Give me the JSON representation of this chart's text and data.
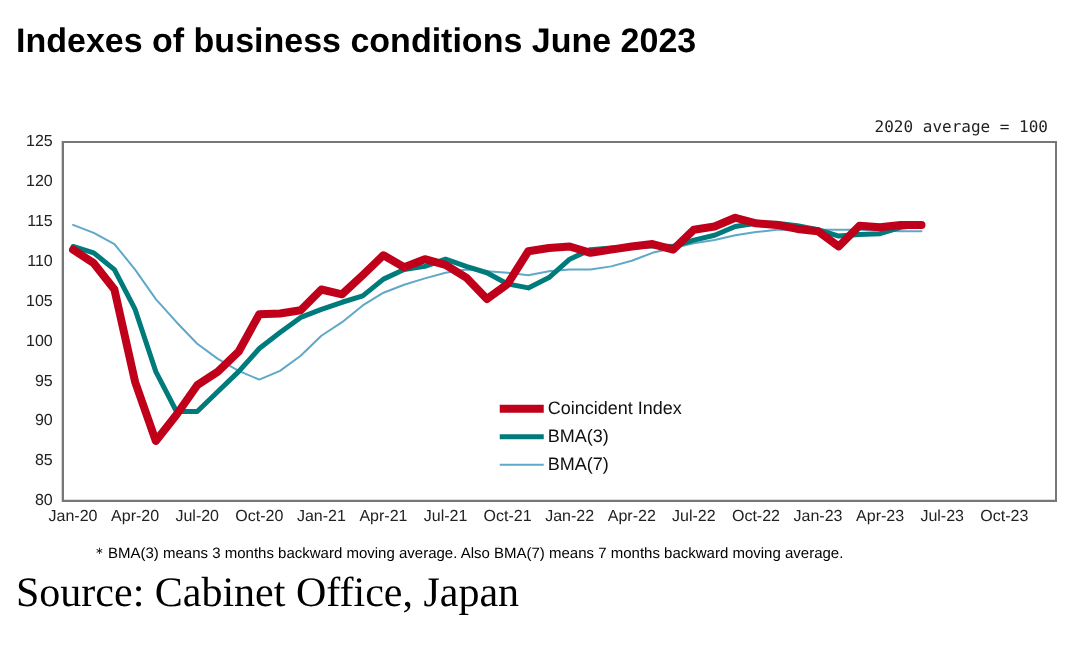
{
  "chart_data": {
    "type": "line",
    "title": "Indexes of business conditions June 2023",
    "categories": [
      "Jan-20",
      null,
      null,
      "Apr-20",
      null,
      null,
      "Jul-20",
      null,
      null,
      "Oct-20",
      null,
      null,
      "Jan-21",
      null,
      null,
      "Apr-21",
      null,
      null,
      "Jul-21",
      null,
      null,
      "Oct-21",
      null,
      null,
      "Jan-22",
      null,
      null,
      "Apr-22",
      null,
      null,
      "Jul-22",
      null,
      null,
      "Oct-22",
      null,
      null,
      "Jan-23",
      null,
      null,
      "Apr-23",
      null,
      null,
      "Jul-23",
      null,
      null,
      "Oct-23",
      null,
      null
    ],
    "series": [
      {
        "name": "Coincident Index",
        "color": "#c0001a",
        "values": [
          111.5,
          109.8,
          106.5,
          94.9,
          87.5,
          90.8,
          94.5,
          96.2,
          98.7,
          103.4,
          103.5,
          103.9,
          106.5,
          105.9,
          108.3,
          110.8,
          109.3,
          110.3,
          109.6,
          108.0,
          105.3,
          107.2,
          111.3,
          111.7,
          111.9,
          111.1,
          111.5,
          111.9,
          112.2,
          111.5,
          114.0,
          114.4,
          115.5,
          114.8,
          114.6,
          114.1,
          113.8,
          111.9,
          114.5,
          114.3,
          114.6,
          114.6,
          null,
          null,
          null,
          null,
          null,
          null
        ]
      },
      {
        "name": "BMA(3)",
        "color": "#007b7b",
        "values": [
          111.9,
          111.1,
          109.0,
          104.0,
          96.2,
          91.2,
          91.2,
          93.7,
          96.2,
          99.1,
          101.1,
          103.0,
          104.0,
          104.9,
          105.7,
          107.8,
          109.0,
          109.4,
          110.3,
          109.4,
          108.6,
          107.2,
          106.7,
          108.0,
          110.3,
          111.5,
          111.7,
          111.8,
          112.0,
          111.9,
          112.7,
          113.3,
          114.4,
          114.8,
          114.8,
          114.5,
          114.0,
          113.2,
          113.4,
          113.5,
          114.3,
          114.6,
          null,
          null,
          null,
          null,
          null,
          null
        ]
      },
      {
        "name": "BMA(7)",
        "color": "#5fa8c8",
        "values": [
          114.6,
          113.6,
          112.2,
          109.0,
          105.3,
          102.4,
          99.7,
          97.8,
          96.3,
          95.2,
          96.3,
          98.2,
          100.7,
          102.4,
          104.5,
          106.1,
          107.1,
          107.9,
          108.6,
          109.0,
          108.8,
          108.6,
          108.3,
          108.8,
          109.0,
          109.0,
          109.4,
          110.1,
          111.1,
          111.7,
          112.3,
          112.7,
          113.3,
          113.7,
          114.0,
          114.0,
          114.0,
          114.0,
          114.0,
          113.9,
          113.8,
          113.8,
          null,
          null,
          null,
          null,
          null,
          null
        ]
      }
    ],
    "ylim": [
      80,
      125
    ],
    "yticks": [
      80,
      85,
      90,
      95,
      100,
      105,
      110,
      115,
      120,
      125
    ],
    "grid": false,
    "legend": "bottom",
    "marker": "none",
    "line_style": "solid",
    "annotations": [
      "2020 average = 100",
      "＊BMA(3) means 3 months backward moving average. Also BMA(7) means 7 months backward moving average.",
      "Source: Cabinet Office, Japan"
    ]
  }
}
